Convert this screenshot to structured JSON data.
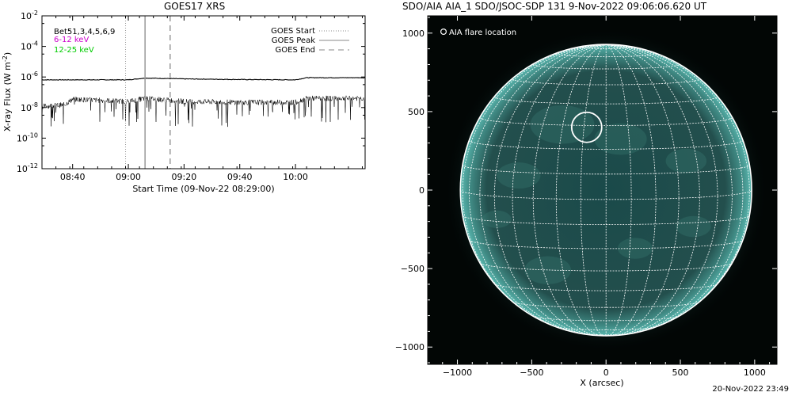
{
  "goes_panel": {
    "title": "GOES17 XRS",
    "ylabel": "X-ray Flux (W m",
    "ylabel_sup": "-2",
    "ylabel_close": ")",
    "xlabel": "Start Time (09-Nov-22 08:29:00)",
    "y_ticks": [
      {
        "base": "10",
        "exp": "-2"
      },
      {
        "base": "10",
        "exp": "-4"
      },
      {
        "base": "10",
        "exp": "-6"
      },
      {
        "base": "10",
        "exp": "-8"
      },
      {
        "base": "10",
        "exp": "-10"
      },
      {
        "base": "10",
        "exp": "-12"
      }
    ],
    "x_ticks": [
      "08:40",
      "09:00",
      "09:20",
      "09:40",
      "10:00"
    ],
    "legend_left": [
      {
        "text": "Bet51,3,4,5,6,9",
        "color": "#000000"
      },
      {
        "text": "6-12 keV",
        "color": "#cc00cc"
      },
      {
        "text": "12-25 keV",
        "color": "#00cc00"
      }
    ],
    "legend_right": [
      {
        "text": "GOES Start",
        "style": "dotted"
      },
      {
        "text": "GOES Peak",
        "style": "solid"
      },
      {
        "text": "GOES End",
        "style": "dashed"
      }
    ]
  },
  "aia_panel": {
    "title": "SDO/AIA AIA_1 SDO/JSOC-SDP 131  9-Nov-2022 09:06:06.620 UT",
    "legend": "AIA flare location",
    "xlabel": "X (arcsec)",
    "x_ticks": [
      "−1000",
      "−500",
      "0",
      "500",
      "1000"
    ],
    "y_ticks": [
      "1000",
      "500",
      "0",
      "−500",
      "−1000"
    ],
    "disk_color": "#1a4a4a",
    "limb_color": "#5ab8b0",
    "grid_color": "#ffffff"
  },
  "footer": "20-Nov-2022 23:49",
  "chart_data": [
    {
      "type": "line",
      "title": "GOES17 XRS",
      "xlabel": "Start Time (09-Nov-22 08:29:00)",
      "ylabel": "X-ray Flux (W m^-2)",
      "y_scale": "log",
      "ylim": [
        1e-12,
        0.01
      ],
      "xlim": [
        "08:29",
        "10:25"
      ],
      "series": [
        {
          "name": "",
          "x": [
            "08:29",
            "08:40",
            "09:00",
            "09:06",
            "09:20",
            "09:40",
            "10:00",
            "10:04",
            "10:25"
          ],
          "values": [
            6.5e-07,
            6.5e-07,
            6.5e-07,
            8.5e-07,
            7.5e-07,
            6.8e-07,
            6.5e-07,
            9e-07,
            9e-07
          ]
        },
        {
          "name": "",
          "x": [
            "08:29",
            "08:37",
            "08:40",
            "09:00",
            "09:06",
            "09:20",
            "09:40",
            "10:00",
            "10:04",
            "10:25"
          ],
          "values": [
            1.2e-08,
            1.5e-08,
            3.5e-08,
            2.5e-08,
            4e-08,
            2.5e-08,
            2.2e-08,
            2.2e-08,
            4e-08,
            4e-08
          ]
        }
      ],
      "vertical_lines": [
        {
          "label": "GOES Start",
          "x": "08:59",
          "style": "dotted"
        },
        {
          "label": "GOES Peak",
          "x": "09:06",
          "style": "solid"
        },
        {
          "label": "GOES End",
          "x": "09:15",
          "style": "dashed"
        }
      ]
    },
    {
      "type": "scatter",
      "title": "SDO/AIA AIA_1 SDO/JSOC-SDP 131  9-Nov-2022 09:06:06.620 UT",
      "xlabel": "X (arcsec)",
      "xlim": [
        -1200,
        1150
      ],
      "ylim": [
        -1110,
        1110
      ],
      "series": [
        {
          "name": "AIA flare location",
          "x": [
            -130
          ],
          "y": [
            400
          ]
        }
      ],
      "solar_radius_arcsec": 980
    }
  ]
}
